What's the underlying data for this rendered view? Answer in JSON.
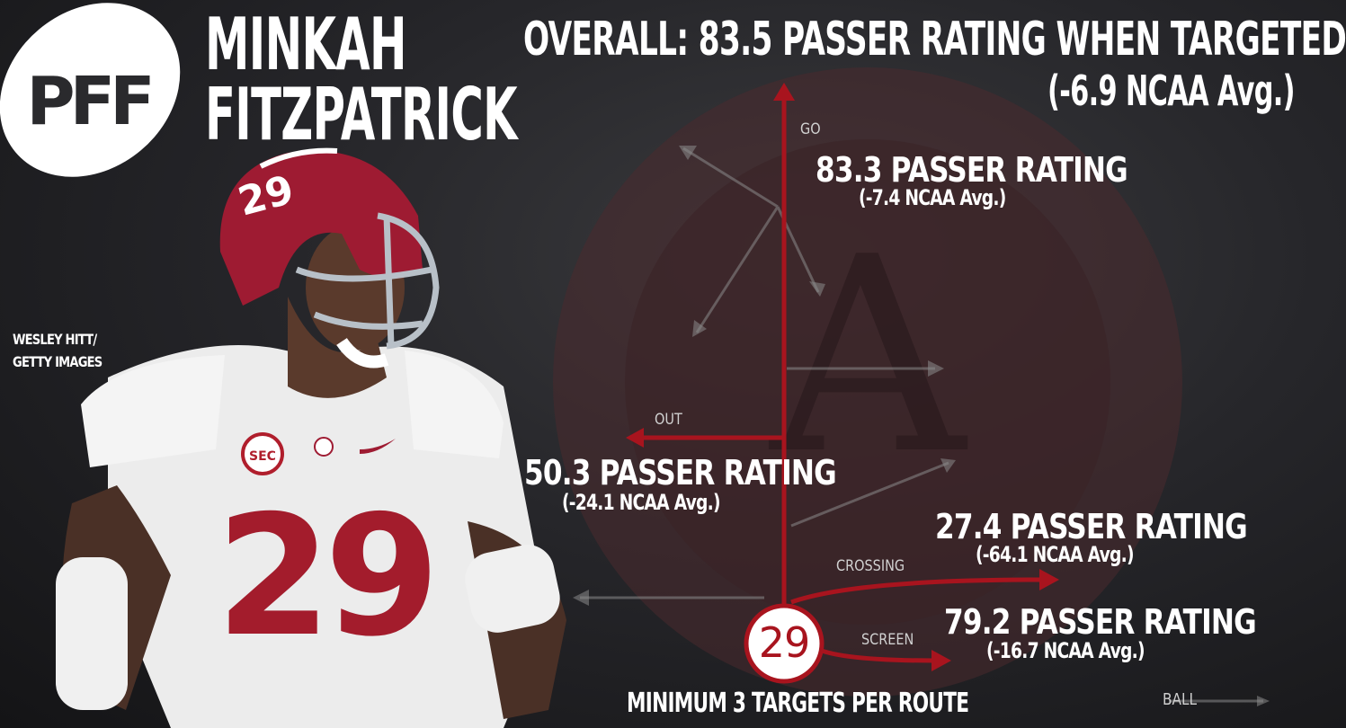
{
  "brand": {
    "logo_text": "PFF"
  },
  "player": {
    "first_name": "MINKAH",
    "last_name": "FITZPATRICK",
    "jersey_number": "29"
  },
  "photo_credit": {
    "line1": "WESLEY HITT/",
    "line2": "GETTY IMAGES"
  },
  "overall": {
    "label": "OVERALL:",
    "value_text": "83.5 PASSER RATING WHEN TARGETED",
    "delta_text": "(-6.9 NCAA Avg.)"
  },
  "routes": {
    "go": {
      "name": "GO",
      "rating_text": "83.3 PASSER RATING",
      "delta_text": "(-7.4 NCAA Avg.)"
    },
    "out": {
      "name": "OUT",
      "rating_text": "50.3 PASSER RATING",
      "delta_text": "(-24.1 NCAA Avg.)"
    },
    "crossing": {
      "name": "CROSSING",
      "rating_text": "27.4 PASSER RATING",
      "delta_text": "(-64.1 NCAA Avg.)"
    },
    "screen": {
      "name": "SCREEN",
      "rating_text": "79.2 PASSER RATING",
      "delta_text": "(-16.7 NCAA Avg.)"
    }
  },
  "footnote": "MINIMUM 3 TARGETS PER ROUTE",
  "ball_label": "BALL",
  "colors": {
    "route_red": "#a8141e",
    "crimson": "#9e1b32",
    "background": "#26262a"
  }
}
